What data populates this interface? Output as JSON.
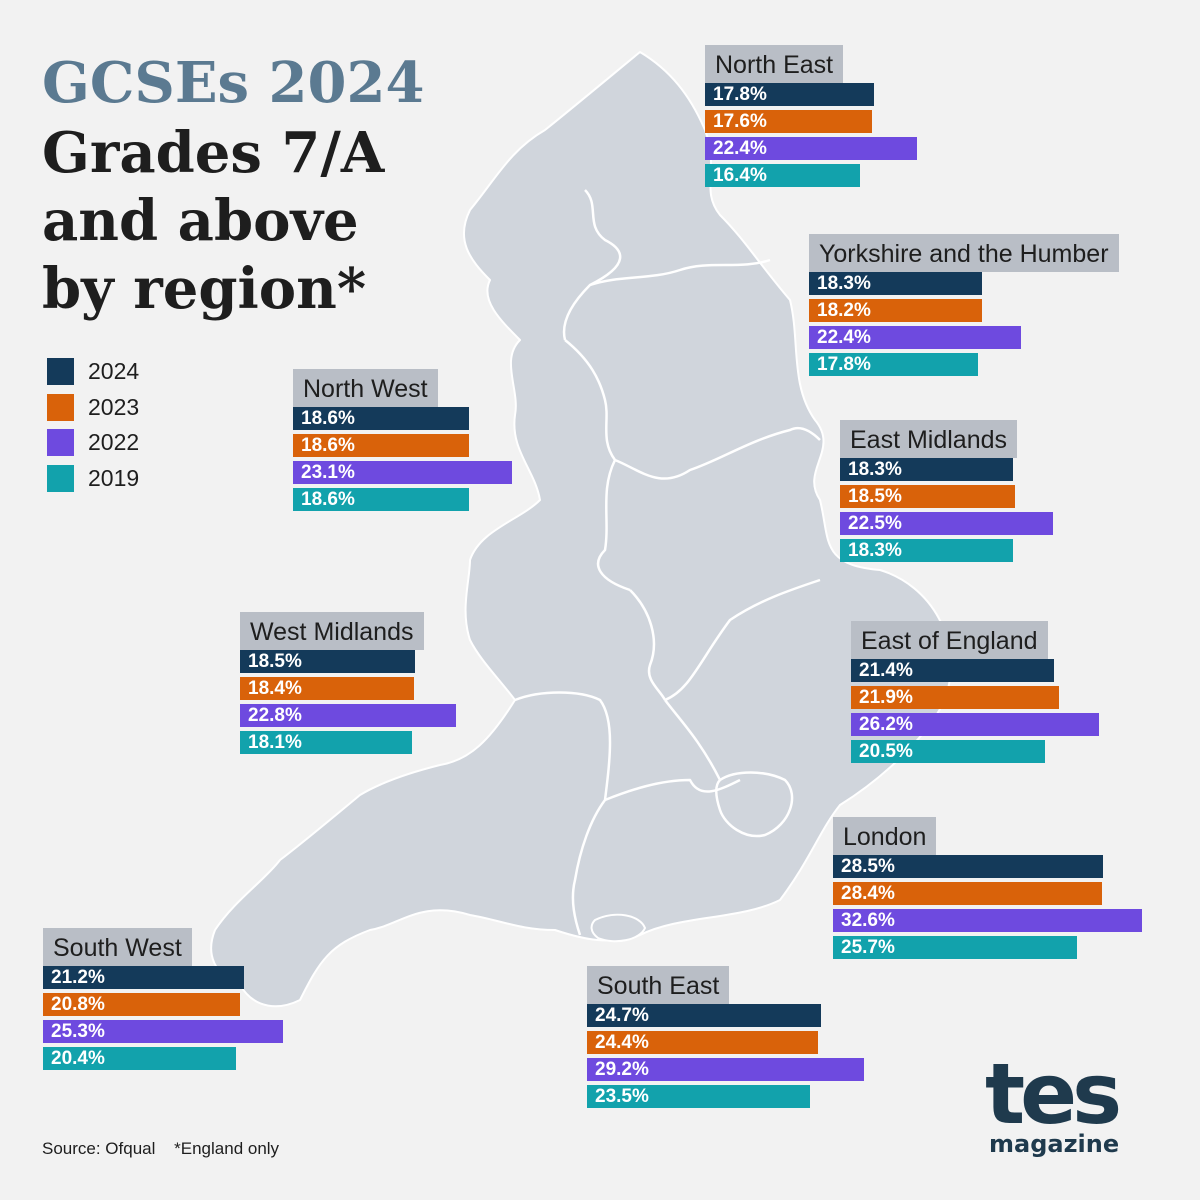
{
  "title": {
    "line1": "GCSEs 2024",
    "line2": "Grades 7/A",
    "line3": "and above",
    "line4": "by region*"
  },
  "legend": [
    {
      "label": "2024",
      "color": "#143a5a"
    },
    {
      "label": "2023",
      "color": "#d9620a"
    },
    {
      "label": "2022",
      "color": "#6e4adf"
    },
    {
      "label": "2019",
      "color": "#12a2ac"
    }
  ],
  "chart_data": {
    "type": "bar",
    "title": "GCSEs 2024 Grades 7/A and above by region*",
    "unit": "%",
    "series_names": [
      "2024",
      "2023",
      "2022",
      "2019"
    ],
    "regions": [
      {
        "name": "North East",
        "values": [
          17.8,
          17.6,
          22.4,
          16.4
        ],
        "labels": [
          "17.8%",
          "17.6%",
          "22.4%",
          "16.4%"
        ]
      },
      {
        "name": "Yorkshire and the Humber",
        "values": [
          18.3,
          18.2,
          22.4,
          17.8
        ],
        "labels": [
          "18.3%",
          "18.2%",
          "22.4%",
          "17.8%"
        ]
      },
      {
        "name": "North West",
        "values": [
          18.6,
          18.6,
          23.1,
          18.6
        ],
        "labels": [
          "18.6%",
          "18.6%",
          "23.1%",
          "18.6%"
        ]
      },
      {
        "name": "East Midlands",
        "values": [
          18.3,
          18.5,
          22.5,
          18.3
        ],
        "labels": [
          "18.3%",
          "18.5%",
          "22.5%",
          "18.3%"
        ]
      },
      {
        "name": "West Midlands",
        "values": [
          18.5,
          18.4,
          22.8,
          18.1
        ],
        "labels": [
          "18.5%",
          "18.4%",
          "22.8%",
          "18.1%"
        ]
      },
      {
        "name": "East of England",
        "values": [
          21.4,
          21.9,
          26.2,
          20.5
        ],
        "labels": [
          "21.4%",
          "21.9%",
          "26.2%",
          "20.5%"
        ]
      },
      {
        "name": "London",
        "values": [
          28.5,
          28.4,
          32.6,
          25.7
        ],
        "labels": [
          "28.5%",
          "28.4%",
          "32.6%",
          "25.7%"
        ]
      },
      {
        "name": "South West",
        "values": [
          21.2,
          20.8,
          25.3,
          20.4
        ],
        "labels": [
          "21.2%",
          "20.8%",
          "25.3%",
          "20.4%"
        ]
      },
      {
        "name": "South East",
        "values": [
          24.7,
          24.4,
          29.2,
          23.5
        ],
        "labels": [
          "24.7%",
          "24.4%",
          "29.2%",
          "23.5%"
        ]
      }
    ]
  },
  "footer": {
    "source": "Source: Ofqual",
    "note": "*England only"
  },
  "logo": {
    "word": "tes",
    "sub": "magazine",
    "color": "#1f3a4d"
  },
  "colors": {
    "background": "#f2f2f2",
    "map_fill": "#d0d5dc",
    "label_bg": "#b9bec6"
  }
}
